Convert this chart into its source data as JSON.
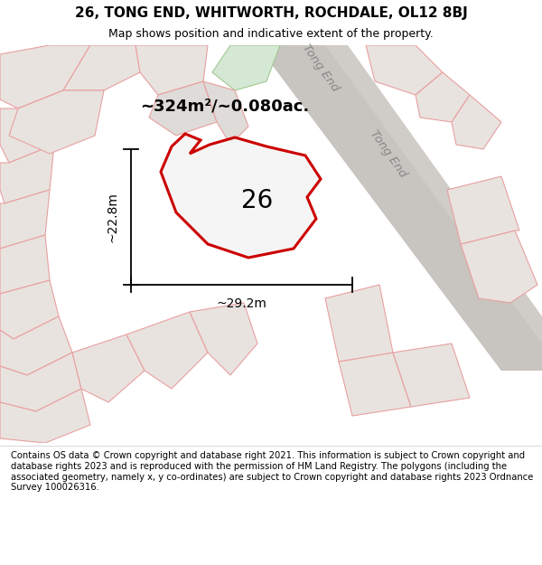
{
  "title_line1": "26, TONG END, WHITWORTH, ROCHDALE, OL12 8BJ",
  "title_line2": "Map shows position and indicative extent of the property.",
  "footer_text": "Contains OS data © Crown copyright and database right 2021. This information is subject to Crown copyright and database rights 2023 and is reproduced with the permission of HM Land Registry. The polygons (including the associated geometry, namely x, y co-ordinates) are subject to Crown copyright and database rights 2023 Ordnance Survey 100026316.",
  "area_text": "~324m²/~0.080ac.",
  "label_number": "26",
  "dim_width": "~29.2m",
  "dim_height": "~22.8m",
  "road_label_upper": "Tong End",
  "road_label_lower": "Tong End",
  "map_bg": "#f0ebe8",
  "property_fill": "#f5f5f5",
  "property_stroke": "#cc0000",
  "fig_width": 6.0,
  "fig_height": 6.25
}
